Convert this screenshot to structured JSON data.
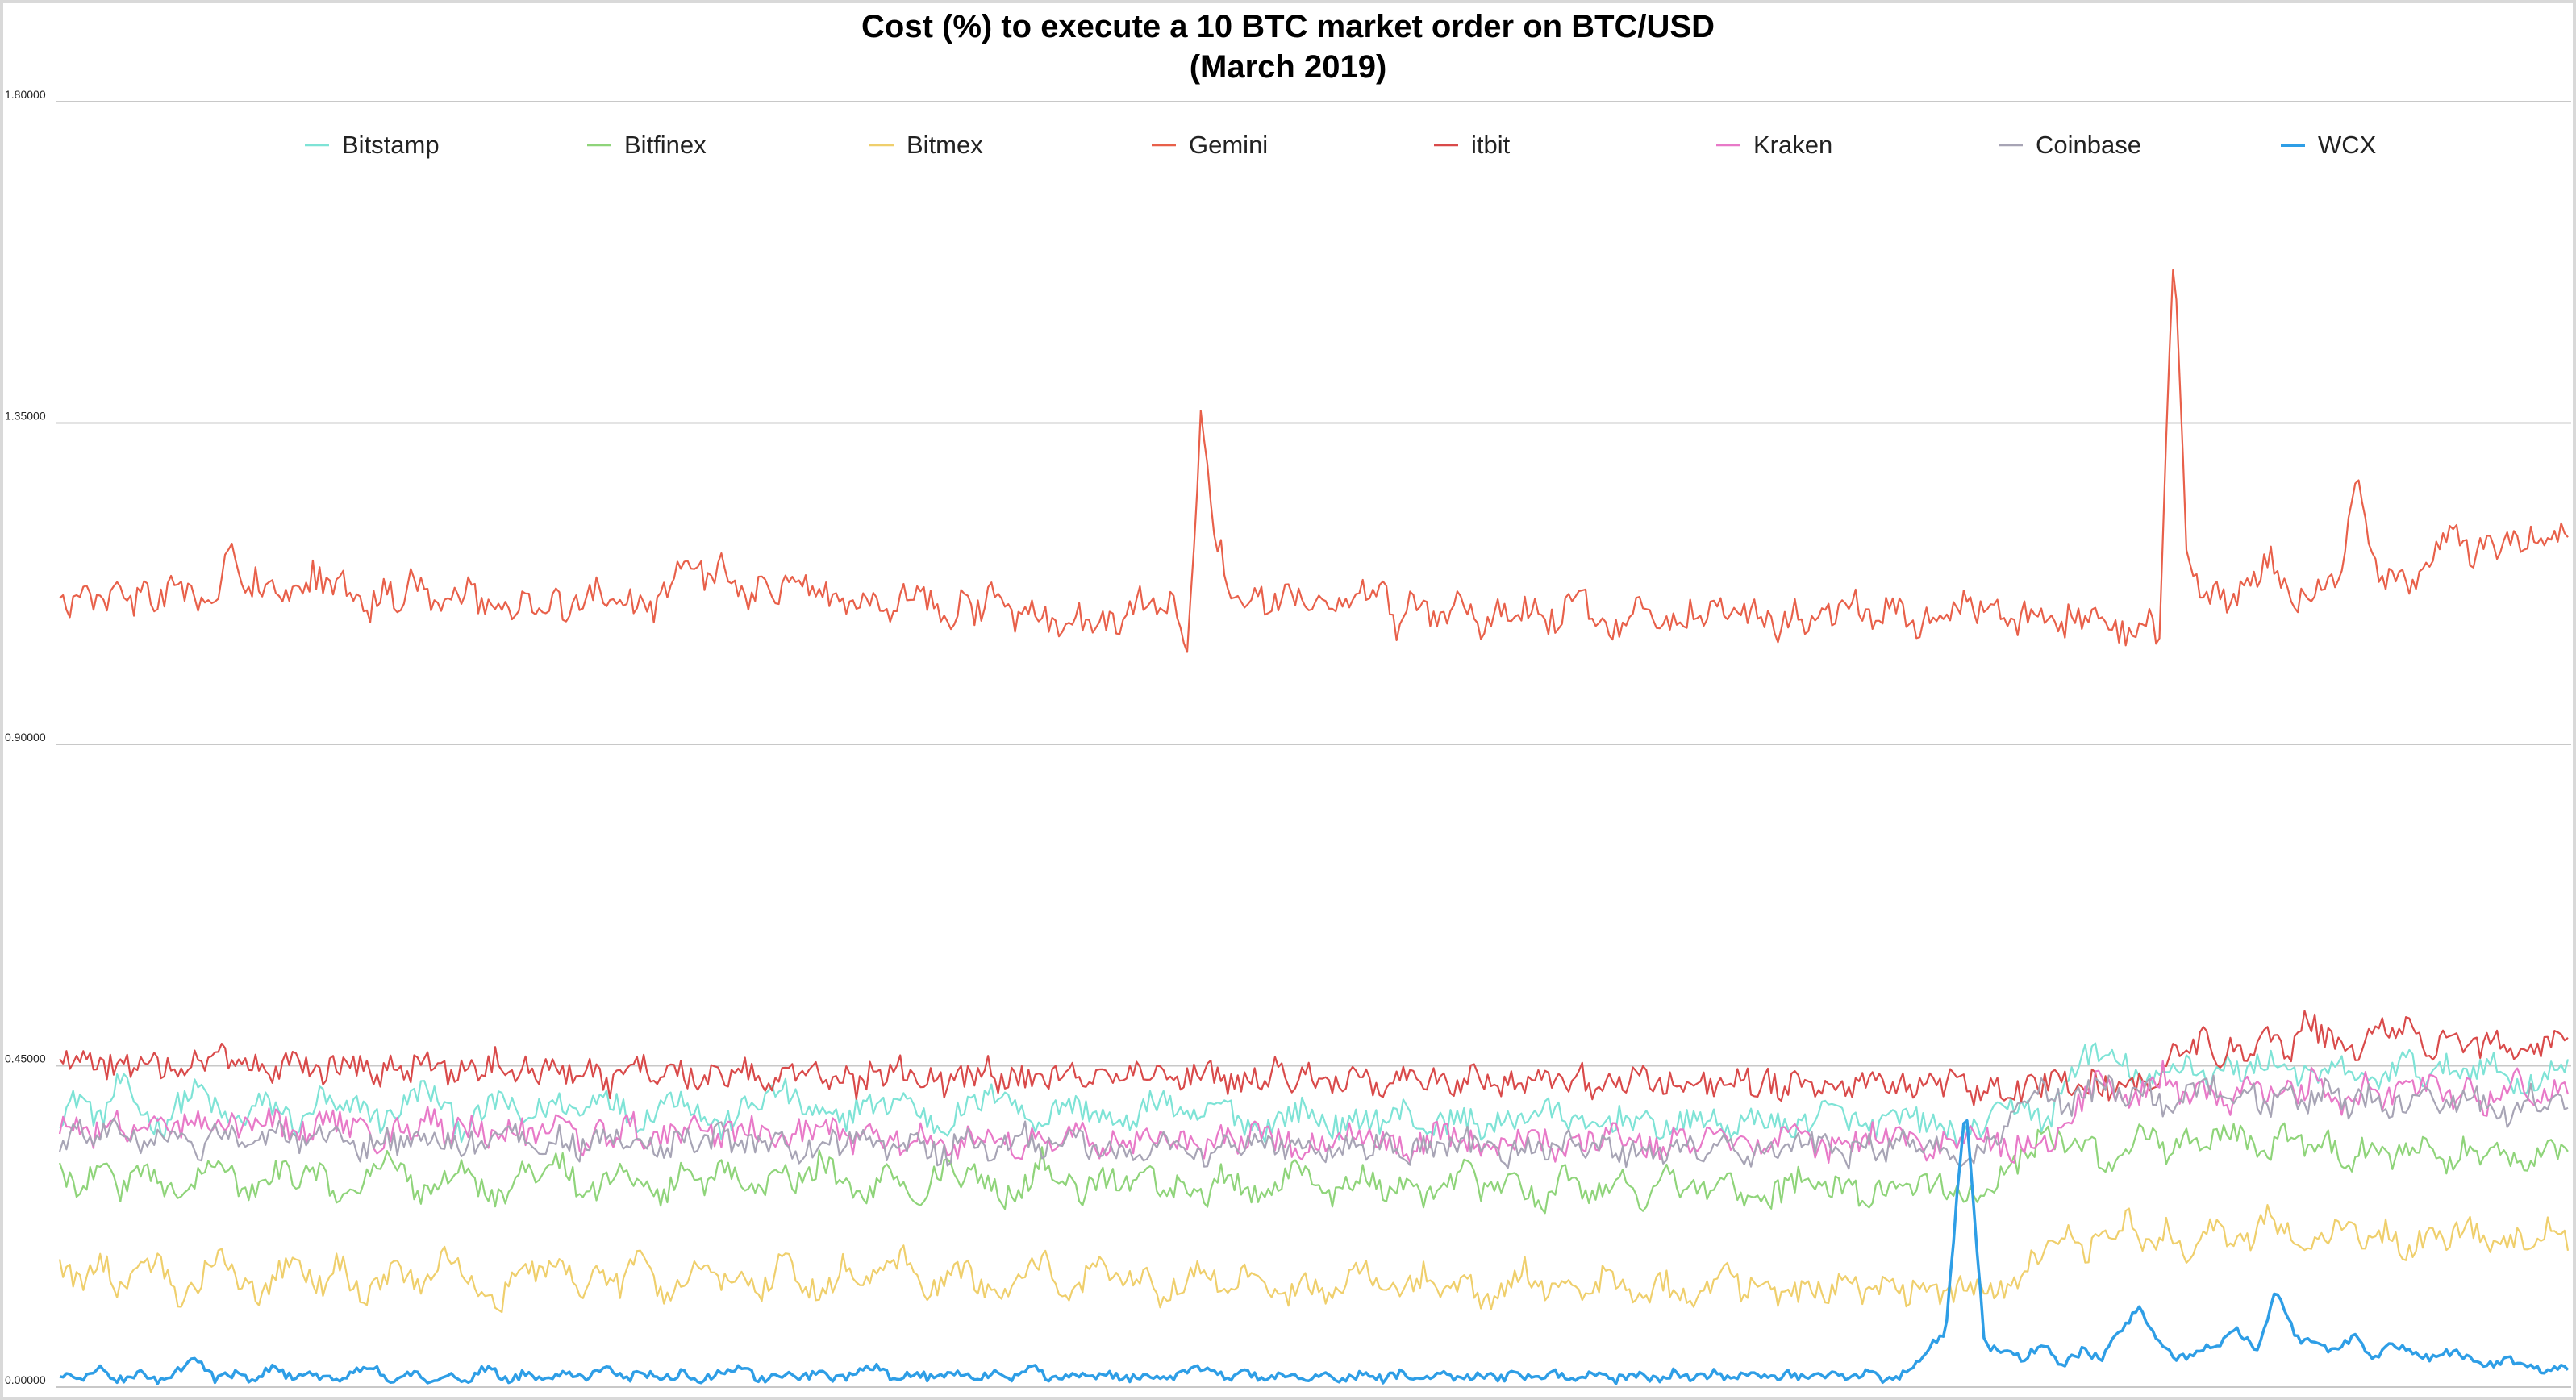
{
  "chart_data": {
    "type": "line",
    "title_lines": [
      "Cost (%) to execute a 10 BTC market order on BTC/USD",
      "(March 2019)"
    ],
    "xlabel": "",
    "ylabel": "",
    "ylim": [
      0,
      1.8
    ],
    "yticks": [
      0,
      0.45,
      0.9,
      1.35,
      1.8
    ],
    "ytick_labels": [
      "0.00000",
      "0.45000",
      "0.90000",
      "1.35000",
      "1.80000"
    ],
    "grid": true,
    "legend_position": "top",
    "x_points": 744,
    "series": [
      {
        "name": "Bitstamp",
        "color": "#7ee3d6",
        "values": [
          0.38,
          0.41,
          0.37,
          0.43,
          0.39,
          0.36,
          0.4,
          0.42,
          0.38,
          0.37,
          0.4,
          0.39,
          0.36,
          0.41,
          0.38,
          0.4,
          0.37,
          0.39,
          0.42,
          0.4,
          0.36,
          0.38,
          0.41,
          0.37,
          0.39,
          0.4,
          0.38,
          0.42,
          0.39,
          0.37,
          0.4,
          0.41,
          0.38,
          0.36,
          0.39,
          0.4,
          0.42,
          0.39,
          0.38,
          0.37,
          0.4,
          0.39,
          0.41,
          0.38,
          0.36,
          0.39,
          0.4,
          0.42,
          0.38,
          0.37,
          0.4,
          0.39,
          0.38,
          0.36,
          0.39,
          0.41,
          0.37,
          0.38,
          0.4,
          0.37,
          0.36,
          0.38,
          0.39,
          0.37,
          0.36,
          0.38,
          0.37,
          0.39,
          0.36,
          0.37,
          0.38,
          0.36,
          0.37,
          0.38,
          0.39,
          0.38,
          0.36,
          0.37,
          0.38,
          0.37,
          0.36,
          0.37,
          0.38,
          0.36,
          0.37,
          0.38,
          0.36,
          0.37,
          0.39,
          0.38,
          0.36,
          0.37,
          0.38,
          0.37,
          0.36,
          0.35,
          0.37,
          0.39,
          0.4,
          0.36,
          0.43,
          0.47,
          0.46,
          0.45,
          0.42,
          0.44,
          0.46,
          0.43,
          0.45,
          0.44,
          0.46,
          0.45,
          0.43,
          0.44,
          0.45,
          0.42,
          0.44,
          0.46,
          0.43,
          0.45,
          0.44,
          0.46,
          0.43,
          0.42,
          0.44,
          0.45
        ]
      },
      {
        "name": "Bitfinex",
        "color": "#8fd47a",
        "values": [
          0.3,
          0.28,
          0.32,
          0.27,
          0.31,
          0.29,
          0.26,
          0.3,
          0.33,
          0.28,
          0.27,
          0.31,
          0.29,
          0.3,
          0.26,
          0.28,
          0.32,
          0.3,
          0.27,
          0.29,
          0.31,
          0.28,
          0.26,
          0.3,
          0.29,
          0.32,
          0.27,
          0.28,
          0.31,
          0.29,
          0.26,
          0.3,
          0.28,
          0.31,
          0.29,
          0.27,
          0.3,
          0.28,
          0.32,
          0.29,
          0.26,
          0.3,
          0.28,
          0.27,
          0.31,
          0.29,
          0.3,
          0.26,
          0.28,
          0.32,
          0.29,
          0.27,
          0.3,
          0.28,
          0.31,
          0.27,
          0.29,
          0.26,
          0.3,
          0.28,
          0.27,
          0.29,
          0.31,
          0.26,
          0.28,
          0.3,
          0.27,
          0.29,
          0.26,
          0.28,
          0.31,
          0.27,
          0.29,
          0.28,
          0.26,
          0.3,
          0.27,
          0.28,
          0.29,
          0.26,
          0.3,
          0.27,
          0.28,
          0.29,
          0.27,
          0.26,
          0.28,
          0.3,
          0.27,
          0.29,
          0.26,
          0.28,
          0.27,
          0.29,
          0.28,
          0.26,
          0.28,
          0.3,
          0.32,
          0.36,
          0.33,
          0.35,
          0.31,
          0.34,
          0.36,
          0.32,
          0.35,
          0.33,
          0.37,
          0.34,
          0.32,
          0.36,
          0.33,
          0.35,
          0.31,
          0.34,
          0.32,
          0.33,
          0.35,
          0.31,
          0.34,
          0.32,
          0.33,
          0.31,
          0.34,
          0.33
        ]
      },
      {
        "name": "Bitmex",
        "color": "#efcf6c",
        "values": [
          0.17,
          0.14,
          0.19,
          0.13,
          0.16,
          0.18,
          0.12,
          0.15,
          0.19,
          0.14,
          0.13,
          0.17,
          0.16,
          0.14,
          0.18,
          0.12,
          0.15,
          0.17,
          0.13,
          0.19,
          0.16,
          0.14,
          0.12,
          0.17,
          0.15,
          0.18,
          0.13,
          0.16,
          0.14,
          0.19,
          0.12,
          0.15,
          0.17,
          0.14,
          0.16,
          0.13,
          0.18,
          0.15,
          0.12,
          0.17,
          0.14,
          0.16,
          0.19,
          0.13,
          0.15,
          0.17,
          0.14,
          0.12,
          0.16,
          0.18,
          0.13,
          0.15,
          0.17,
          0.14,
          0.16,
          0.12,
          0.15,
          0.17,
          0.13,
          0.16,
          0.14,
          0.12,
          0.16,
          0.13,
          0.15,
          0.17,
          0.12,
          0.14,
          0.16,
          0.13,
          0.15,
          0.12,
          0.14,
          0.17,
          0.13,
          0.15,
          0.12,
          0.16,
          0.14,
          0.13,
          0.15,
          0.12,
          0.14,
          0.16,
          0.13,
          0.15,
          0.12,
          0.14,
          0.13,
          0.16,
          0.12,
          0.15,
          0.13,
          0.14,
          0.12,
          0.15,
          0.14,
          0.13,
          0.17,
          0.2,
          0.22,
          0.19,
          0.21,
          0.24,
          0.2,
          0.22,
          0.19,
          0.23,
          0.21,
          0.2,
          0.24,
          0.22,
          0.19,
          0.21,
          0.23,
          0.2,
          0.22,
          0.19,
          0.21,
          0.2,
          0.23,
          0.19,
          0.21,
          0.2,
          0.22,
          0.2
        ]
      },
      {
        "name": "Gemini",
        "color": "#e8604a",
        "values": [
          1.1,
          1.09,
          1.11,
          1.1,
          1.12,
          1.09,
          1.11,
          1.1,
          1.12,
          1.11,
          1.09,
          1.1,
          1.18,
          1.12,
          1.13,
          1.12,
          1.1,
          1.11,
          1.14,
          1.12,
          1.13,
          1.11,
          1.09,
          1.12,
          1.1,
          1.13,
          1.11,
          1.08,
          1.1,
          1.12,
          1.09,
          1.11,
          1.08,
          1.1,
          1.09,
          1.11,
          1.08,
          1.1,
          1.12,
          1.09,
          1.11,
          1.1,
          1.08,
          1.12,
          1.14,
          1.16,
          1.12,
          1.15,
          1.11,
          1.1,
          1.13,
          1.11,
          1.14,
          1.12,
          1.1,
          1.12,
          1.09,
          1.11,
          1.1,
          1.08,
          1.11,
          1.12,
          1.09,
          1.07,
          1.1,
          1.08,
          1.11,
          1.09,
          1.07,
          1.1,
          1.08,
          1.06,
          1.09,
          1.07,
          1.08,
          1.06,
          1.09,
          1.11,
          1.07,
          1.1,
          1.02,
          1.37,
          1.2,
          1.12,
          1.1,
          1.11,
          1.09,
          1.12,
          1.1,
          1.08,
          1.11,
          1.09,
          1.12,
          1.1,
          1.13,
          1.05,
          1.11,
          1.09,
          1.07,
          1.1,
          1.08,
          1.06,
          1.09,
          1.07,
          1.1,
          1.08,
          1.07,
          1.09,
          1.11,
          1.08,
          1.06,
          1.07,
          1.09,
          1.08,
          1.06,
          1.07,
          1.09,
          1.08,
          1.1,
          1.07,
          1.09,
          1.08,
          1.06,
          1.09,
          1.07,
          1.1,
          1.08,
          1.11,
          1.09,
          1.07,
          1.1,
          1.08,
          1.06,
          1.09,
          1.07,
          1.1,
          1.08,
          1.11,
          1.09,
          1.07,
          1.1,
          1.08,
          1.06,
          1.09,
          1.07,
          1.08,
          1.06,
          1.05,
          1.08,
          1.05,
          1.6,
          1.15,
          1.12,
          1.11,
          1.09,
          1.13,
          1.14,
          1.16,
          1.12,
          1.1,
          1.11,
          1.13,
          1.14,
          1.3,
          1.17,
          1.13,
          1.15,
          1.12,
          1.14,
          1.18,
          1.2,
          1.16,
          1.18,
          1.17,
          1.19,
          1.18,
          1.2,
          1.19,
          1.21
        ]
      },
      {
        "name": "itbit",
        "color": "#d94a4a",
        "values": [
          0.46,
          0.45,
          0.47,
          0.44,
          0.46,
          0.45,
          0.47,
          0.45,
          0.44,
          0.46,
          0.45,
          0.47,
          0.44,
          0.46,
          0.45,
          0.44,
          0.46,
          0.45,
          0.43,
          0.45,
          0.44,
          0.46,
          0.43,
          0.45,
          0.44,
          0.46,
          0.45,
          0.43,
          0.45,
          0.44,
          0.46,
          0.43,
          0.45,
          0.44,
          0.46,
          0.43,
          0.45,
          0.44,
          0.42,
          0.44,
          0.46,
          0.43,
          0.45,
          0.44,
          0.42,
          0.44,
          0.43,
          0.45,
          0.44,
          0.42,
          0.44,
          0.43,
          0.45,
          0.43,
          0.44,
          0.42,
          0.44,
          0.43,
          0.45,
          0.43,
          0.44,
          0.42,
          0.44,
          0.43,
          0.45,
          0.42,
          0.44,
          0.43,
          0.42,
          0.44,
          0.45,
          0.43,
          0.44,
          0.42,
          0.45,
          0.43,
          0.44,
          0.42,
          0.44,
          0.45,
          0.43,
          0.42,
          0.44,
          0.43,
          0.45,
          0.42,
          0.44,
          0.43,
          0.42,
          0.44,
          0.43,
          0.41,
          0.44,
          0.43,
          0.42,
          0.44,
          0.42,
          0.43,
          0.44,
          0.42,
          0.43,
          0.41,
          0.44,
          0.43,
          0.42,
          0.44,
          0.41,
          0.43,
          0.42,
          0.44,
          0.42,
          0.43,
          0.41,
          0.44,
          0.42,
          0.43,
          0.44,
          0.42,
          0.43,
          0.41,
          0.44,
          0.42,
          0.43,
          0.41,
          0.42,
          0.44,
          0.42,
          0.43,
          0.41,
          0.43,
          0.42,
          0.44,
          0.41,
          0.43,
          0.42,
          0.41,
          0.43,
          0.42,
          0.44,
          0.41,
          0.43,
          0.42,
          0.41,
          0.43,
          0.42,
          0.44,
          0.48,
          0.47,
          0.49,
          0.46,
          0.48,
          0.47,
          0.5,
          0.48,
          0.47,
          0.52,
          0.49,
          0.48,
          0.46,
          0.48,
          0.51,
          0.49,
          0.52,
          0.48,
          0.47,
          0.5,
          0.48,
          0.47,
          0.49,
          0.46,
          0.48,
          0.47,
          0.49,
          0.48
        ]
      },
      {
        "name": "Kraken",
        "color": "#e879c8",
        "values": [
          0.36,
          0.37,
          0.35,
          0.38,
          0.36,
          0.37,
          0.39,
          0.36,
          0.38,
          0.35,
          0.37,
          0.36,
          0.38,
          0.37,
          0.35,
          0.36,
          0.38,
          0.37,
          0.36,
          0.34,
          0.37,
          0.36,
          0.38,
          0.35,
          0.37,
          0.36,
          0.34,
          0.37,
          0.35,
          0.36,
          0.38,
          0.34,
          0.36,
          0.35,
          0.37,
          0.34,
          0.36,
          0.35,
          0.38,
          0.34,
          0.36,
          0.37,
          0.35,
          0.34,
          0.36,
          0.35,
          0.37,
          0.34,
          0.36,
          0.35,
          0.34,
          0.36,
          0.35,
          0.33,
          0.35,
          0.34,
          0.36,
          0.33,
          0.35,
          0.34,
          0.36,
          0.35,
          0.33,
          0.35,
          0.34,
          0.36,
          0.34,
          0.35,
          0.33,
          0.35,
          0.34,
          0.36,
          0.35,
          0.34,
          0.33,
          0.35,
          0.34,
          0.36,
          0.34,
          0.35,
          0.33,
          0.34,
          0.36,
          0.35,
          0.34,
          0.33,
          0.35,
          0.34,
          0.35,
          0.33,
          0.35,
          0.34,
          0.36,
          0.35,
          0.34,
          0.33,
          0.35,
          0.34,
          0.36,
          0.35,
          0.34,
          0.33,
          0.35,
          0.36,
          0.34,
          0.33,
          0.35,
          0.34,
          0.36,
          0.35,
          0.34,
          0.33,
          0.35,
          0.34,
          0.36,
          0.34,
          0.33,
          0.35,
          0.34,
          0.36,
          0.4,
          0.43,
          0.41,
          0.39,
          0.42,
          0.44,
          0.4,
          0.42,
          0.41,
          0.39,
          0.43,
          0.41,
          0.42,
          0.4,
          0.44,
          0.41,
          0.39,
          0.43,
          0.4,
          0.42,
          0.41,
          0.43,
          0.4,
          0.42,
          0.39,
          0.41,
          0.43,
          0.4,
          0.42,
          0.41
        ]
      },
      {
        "name": "Coinbase",
        "color": "#a7a4b5",
        "values": [
          0.34,
          0.36,
          0.35,
          0.37,
          0.34,
          0.36,
          0.35,
          0.33,
          0.36,
          0.34,
          0.35,
          0.37,
          0.34,
          0.35,
          0.36,
          0.33,
          0.35,
          0.34,
          0.36,
          0.35,
          0.33,
          0.35,
          0.34,
          0.36,
          0.34,
          0.35,
          0.33,
          0.36,
          0.34,
          0.35,
          0.33,
          0.35,
          0.34,
          0.36,
          0.33,
          0.35,
          0.34,
          0.32,
          0.35,
          0.34,
          0.36,
          0.33,
          0.35,
          0.34,
          0.32,
          0.35,
          0.33,
          0.34,
          0.36,
          0.33,
          0.35,
          0.34,
          0.32,
          0.34,
          0.33,
          0.35,
          0.34,
          0.32,
          0.34,
          0.33,
          0.35,
          0.33,
          0.34,
          0.32,
          0.34,
          0.33,
          0.35,
          0.32,
          0.34,
          0.33,
          0.35,
          0.34,
          0.32,
          0.34,
          0.33,
          0.35,
          0.33,
          0.34,
          0.32,
          0.34,
          0.33,
          0.35,
          0.33,
          0.34,
          0.32,
          0.34,
          0.33,
          0.35,
          0.34,
          0.32,
          0.34,
          0.33,
          0.35,
          0.33,
          0.34,
          0.32,
          0.34,
          0.36,
          0.4,
          0.42,
          0.39,
          0.41,
          0.43,
          0.4,
          0.42,
          0.38,
          0.41,
          0.43,
          0.4,
          0.42,
          0.39,
          0.41,
          0.4,
          0.42,
          0.39,
          0.41,
          0.38,
          0.4,
          0.42,
          0.39,
          0.41,
          0.4,
          0.38,
          0.41,
          0.39,
          0.4
        ]
      },
      {
        "name": "WCX",
        "color": "#2e9ee6",
        "values": [
          0.02,
          0.01,
          0.03,
          0.01,
          0.02,
          0.01,
          0.02,
          0.04,
          0.01,
          0.02,
          0.01,
          0.03,
          0.01,
          0.02,
          0.01,
          0.02,
          0.03,
          0.01,
          0.02,
          0.01,
          0.02,
          0.01,
          0.03,
          0.01,
          0.02,
          0.01,
          0.02,
          0.01,
          0.03,
          0.01,
          0.02,
          0.01,
          0.02,
          0.01,
          0.02,
          0.03,
          0.01,
          0.02,
          0.01,
          0.02,
          0.01,
          0.02,
          0.03,
          0.01,
          0.02,
          0.01,
          0.02,
          0.01,
          0.02,
          0.01,
          0.03,
          0.01,
          0.02,
          0.01,
          0.02,
          0.01,
          0.02,
          0.01,
          0.02,
          0.03,
          0.01,
          0.02,
          0.01,
          0.02,
          0.01,
          0.02,
          0.01,
          0.02,
          0.01,
          0.02,
          0.01,
          0.02,
          0.01,
          0.02,
          0.01,
          0.02,
          0.01,
          0.02,
          0.01,
          0.02,
          0.01,
          0.02,
          0.01,
          0.02,
          0.01,
          0.02,
          0.01,
          0.02,
          0.01,
          0.02,
          0.01,
          0.02,
          0.01,
          0.02,
          0.01,
          0.02,
          0.05,
          0.08,
          0.4,
          0.06,
          0.05,
          0.04,
          0.06,
          0.03,
          0.05,
          0.04,
          0.08,
          0.11,
          0.06,
          0.04,
          0.05,
          0.06,
          0.08,
          0.05,
          0.14,
          0.07,
          0.06,
          0.05,
          0.07,
          0.04,
          0.06,
          0.05,
          0.04,
          0.05,
          0.04,
          0.03,
          0.04,
          0.03,
          0.02,
          0.03
        ]
      }
    ]
  }
}
